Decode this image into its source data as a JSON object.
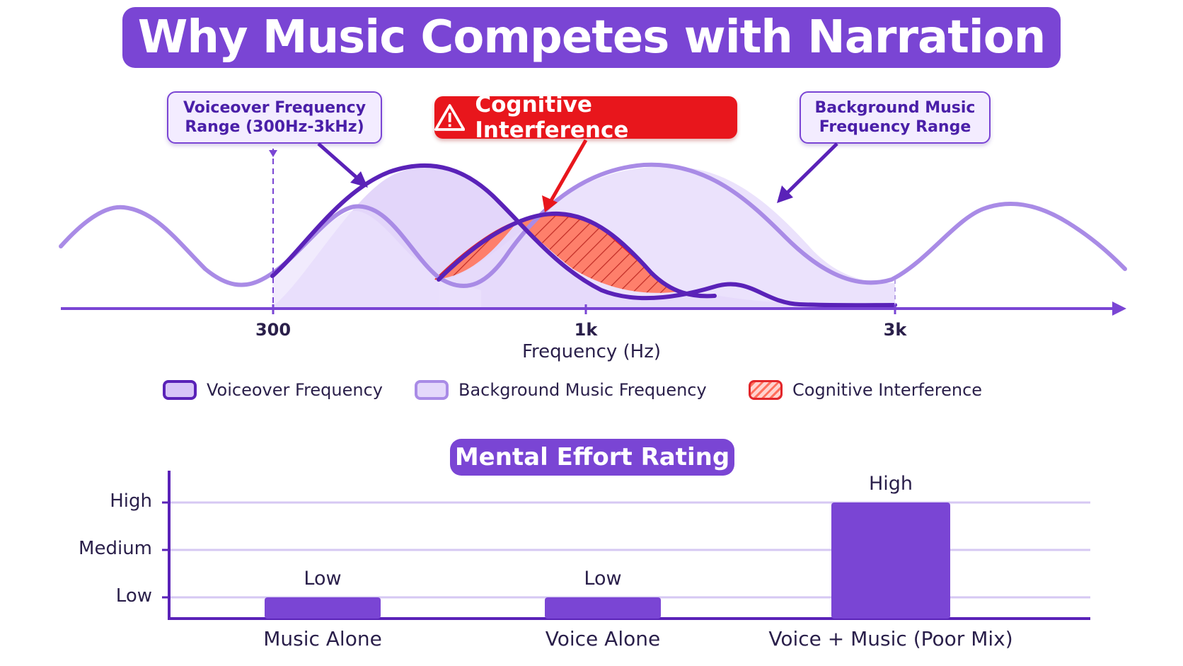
{
  "title": "Why Music Competes with Narration",
  "callouts": {
    "voice": [
      "Voiceover Frequency",
      "Range (300Hz-3kHz)"
    ],
    "interference": "Cognitive Interference",
    "music": [
      "Background Music",
      "Frequency Range"
    ]
  },
  "frequency_axis": {
    "ticks": [
      "300",
      "1k",
      "3k"
    ],
    "label": "Frequency (Hz)"
  },
  "legend": [
    {
      "label": "Voiceover Frequency"
    },
    {
      "label": "Background Music Frequency"
    },
    {
      "label": "Cognitive Interference"
    }
  ],
  "colors": {
    "primary": "#7a45d4",
    "voice_line": "#5a22b8",
    "music_line": "#a98be6",
    "interference": "#e8161c"
  },
  "chart_data": {
    "type": "bar",
    "title": "Mental Effort Rating",
    "categories": [
      "Music Alone",
      "Voice Alone",
      "Voice + Music (Poor Mix)"
    ],
    "levels": [
      "Low",
      "Medium",
      "High"
    ],
    "values": [
      1,
      1,
      3
    ],
    "value_labels": [
      "Low",
      "Low",
      "High"
    ],
    "ylim": [
      0,
      3
    ]
  }
}
